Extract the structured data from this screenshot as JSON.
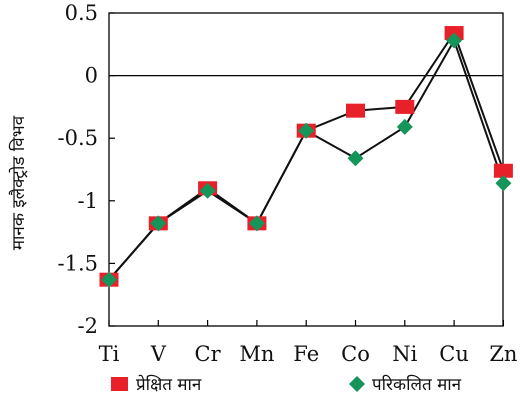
{
  "chart_data": {
    "type": "line",
    "title": "",
    "xlabel": "",
    "ylabel": "मानक इलैक्ट्रोड विभव",
    "categories": [
      "Ti",
      "V",
      "Cr",
      "Mn",
      "Fe",
      "Co",
      "Ni",
      "Cu",
      "Zn"
    ],
    "ylim": [
      -2,
      0.5
    ],
    "yticks": [
      {
        "value": 0.5,
        "label": "0.5"
      },
      {
        "value": 0,
        "label": "0"
      },
      {
        "value": -0.5,
        "label": "-0.5"
      },
      {
        "value": -1,
        "label": "-1"
      },
      {
        "value": -1.5,
        "label": "-1.5"
      },
      {
        "value": -2,
        "label": "-2"
      }
    ],
    "zero_line": true,
    "grid": false,
    "legend_position": "bottom",
    "series": [
      {
        "name": "प्रेक्षित मान",
        "marker": "square",
        "color": "#e8202a",
        "values": [
          -1.63,
          -1.18,
          -0.9,
          -1.18,
          -0.44,
          -0.28,
          -0.25,
          0.34,
          -0.76
        ]
      },
      {
        "name": "परिकलित मान",
        "marker": "diamond",
        "color": "#15955a",
        "values": [
          -1.63,
          -1.18,
          -0.92,
          -1.18,
          -0.44,
          -0.66,
          -0.41,
          0.28,
          -0.86
        ]
      }
    ]
  }
}
